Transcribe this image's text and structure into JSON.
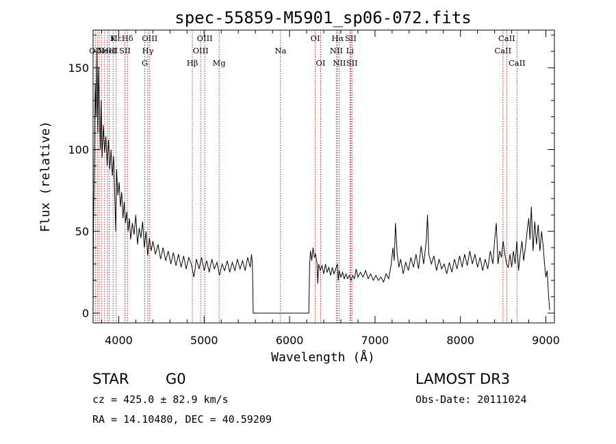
{
  "chart_data": {
    "type": "line",
    "title": "spec-55859-M5901_sp06-072.fits",
    "xlabel": "Wavelength (Å)",
    "ylabel": "Flux (relative)",
    "xlim": [
      3700,
      9100
    ],
    "ylim": [
      -6,
      173
    ],
    "x_ticks": [
      4000,
      5000,
      6000,
      7000,
      8000,
      9000
    ],
    "x_tick_labels": [
      "4000",
      "5000",
      "6000",
      "7000",
      "8000",
      "9000"
    ],
    "y_ticks": [
      0,
      50,
      100,
      150
    ],
    "y_tick_labels": [
      "0",
      "50",
      "100",
      "150"
    ],
    "series": [
      {
        "name": "flux",
        "color": "#000000",
        "points": [
          [
            3700,
            0
          ],
          [
            3705,
            55
          ],
          [
            3715,
            90
          ],
          [
            3725,
            140
          ],
          [
            3735,
            120
          ],
          [
            3745,
            160
          ],
          [
            3755,
            110
          ],
          [
            3765,
            150
          ],
          [
            3775,
            125
          ],
          [
            3785,
            100
          ],
          [
            3795,
            130
          ],
          [
            3805,
            95
          ],
          [
            3820,
            115
          ],
          [
            3835,
            98
          ],
          [
            3850,
            108
          ],
          [
            3865,
            90
          ],
          [
            3880,
            106
          ],
          [
            3895,
            88
          ],
          [
            3910,
            100
          ],
          [
            3925,
            84
          ],
          [
            3940,
            96
          ],
          [
            3955,
            70
          ],
          [
            3965,
            50
          ],
          [
            3975,
            88
          ],
          [
            3990,
            72
          ],
          [
            4005,
            80
          ],
          [
            4020,
            65
          ],
          [
            4035,
            74
          ],
          [
            4050,
            58
          ],
          [
            4065,
            68
          ],
          [
            4080,
            55
          ],
          [
            4095,
            62
          ],
          [
            4110,
            50
          ],
          [
            4125,
            58
          ],
          [
            4140,
            45
          ],
          [
            4160,
            55
          ],
          [
            4180,
            48
          ],
          [
            4200,
            60
          ],
          [
            4220,
            42
          ],
          [
            4240,
            52
          ],
          [
            4260,
            46
          ],
          [
            4280,
            56
          ],
          [
            4300,
            40
          ],
          [
            4320,
            50
          ],
          [
            4340,
            35
          ],
          [
            4360,
            46
          ],
          [
            4380,
            38
          ],
          [
            4400,
            44
          ],
          [
            4430,
            36
          ],
          [
            4460,
            42
          ],
          [
            4490,
            33
          ],
          [
            4520,
            40
          ],
          [
            4550,
            32
          ],
          [
            4580,
            38
          ],
          [
            4610,
            30
          ],
          [
            4640,
            37
          ],
          [
            4670,
            29
          ],
          [
            4700,
            36
          ],
          [
            4730,
            28
          ],
          [
            4760,
            35
          ],
          [
            4790,
            27
          ],
          [
            4820,
            34
          ],
          [
            4850,
            30
          ],
          [
            4880,
            22
          ],
          [
            4910,
            33
          ],
          [
            4940,
            27
          ],
          [
            4970,
            34
          ],
          [
            5000,
            26
          ],
          [
            5030,
            32
          ],
          [
            5060,
            25
          ],
          [
            5090,
            33
          ],
          [
            5120,
            27
          ],
          [
            5150,
            31
          ],
          [
            5180,
            23
          ],
          [
            5210,
            30
          ],
          [
            5240,
            26
          ],
          [
            5270,
            32
          ],
          [
            5300,
            25
          ],
          [
            5330,
            31
          ],
          [
            5360,
            26
          ],
          [
            5390,
            33
          ],
          [
            5420,
            27
          ],
          [
            5450,
            32
          ],
          [
            5480,
            26
          ],
          [
            5510,
            34
          ],
          [
            5540,
            28
          ],
          [
            5555,
            36
          ],
          [
            5565,
            30
          ],
          [
            5575,
            0
          ],
          [
            5700,
            0
          ],
          [
            5900,
            0
          ],
          [
            6100,
            0
          ],
          [
            6225,
            0
          ],
          [
            6235,
            30
          ],
          [
            6245,
            38
          ],
          [
            6260,
            32
          ],
          [
            6275,
            40
          ],
          [
            6290,
            34
          ],
          [
            6305,
            36
          ],
          [
            6320,
            31
          ],
          [
            6330,
            18
          ],
          [
            6340,
            30
          ],
          [
            6360,
            26
          ],
          [
            6380,
            29
          ],
          [
            6400,
            24
          ],
          [
            6420,
            30
          ],
          [
            6440,
            25
          ],
          [
            6460,
            28
          ],
          [
            6480,
            23
          ],
          [
            6500,
            28
          ],
          [
            6520,
            24
          ],
          [
            6540,
            27
          ],
          [
            6560,
            30
          ],
          [
            6570,
            20
          ],
          [
            6580,
            26
          ],
          [
            6600,
            22
          ],
          [
            6620,
            25
          ],
          [
            6640,
            21
          ],
          [
            6660,
            24
          ],
          [
            6680,
            21
          ],
          [
            6700,
            23
          ],
          [
            6720,
            20
          ],
          [
            6740,
            23
          ],
          [
            6760,
            21
          ],
          [
            6780,
            27
          ],
          [
            6800,
            22
          ],
          [
            6830,
            25
          ],
          [
            6860,
            22
          ],
          [
            6890,
            26
          ],
          [
            6920,
            21
          ],
          [
            6950,
            24
          ],
          [
            6980,
            20
          ],
          [
            7010,
            23
          ],
          [
            7040,
            20
          ],
          [
            7070,
            22
          ],
          [
            7100,
            19
          ],
          [
            7130,
            24
          ],
          [
            7160,
            21
          ],
          [
            7190,
            30
          ],
          [
            7210,
            40
          ],
          [
            7225,
            32
          ],
          [
            7240,
            55
          ],
          [
            7260,
            36
          ],
          [
            7280,
            28
          ],
          [
            7300,
            33
          ],
          [
            7330,
            24
          ],
          [
            7360,
            31
          ],
          [
            7390,
            26
          ],
          [
            7420,
            34
          ],
          [
            7450,
            28
          ],
          [
            7480,
            36
          ],
          [
            7510,
            27
          ],
          [
            7540,
            41
          ],
          [
            7570,
            30
          ],
          [
            7600,
            44
          ],
          [
            7615,
            60
          ],
          [
            7630,
            36
          ],
          [
            7660,
            30
          ],
          [
            7690,
            35
          ],
          [
            7720,
            26
          ],
          [
            7750,
            33
          ],
          [
            7780,
            27
          ],
          [
            7810,
            30
          ],
          [
            7840,
            24
          ],
          [
            7870,
            31
          ],
          [
            7900,
            25
          ],
          [
            7930,
            33
          ],
          [
            7960,
            27
          ],
          [
            7990,
            35
          ],
          [
            8020,
            28
          ],
          [
            8050,
            36
          ],
          [
            8080,
            29
          ],
          [
            8110,
            38
          ],
          [
            8140,
            30
          ],
          [
            8170,
            36
          ],
          [
            8200,
            28
          ],
          [
            8230,
            34
          ],
          [
            8260,
            26
          ],
          [
            8290,
            33
          ],
          [
            8320,
            27
          ],
          [
            8350,
            38
          ],
          [
            8380,
            30
          ],
          [
            8400,
            44
          ],
          [
            8420,
            55
          ],
          [
            8440,
            30
          ],
          [
            8460,
            38
          ],
          [
            8480,
            34
          ],
          [
            8500,
            44
          ],
          [
            8520,
            36
          ],
          [
            8540,
            30
          ],
          [
            8560,
            28
          ],
          [
            8580,
            36
          ],
          [
            8600,
            28
          ],
          [
            8620,
            38
          ],
          [
            8640,
            30
          ],
          [
            8660,
            44
          ],
          [
            8680,
            26
          ],
          [
            8700,
            36
          ],
          [
            8720,
            44
          ],
          [
            8740,
            32
          ],
          [
            8760,
            40
          ],
          [
            8780,
            50
          ],
          [
            8800,
            58
          ],
          [
            8815,
            45
          ],
          [
            8830,
            65
          ],
          [
            8850,
            38
          ],
          [
            8870,
            56
          ],
          [
            8890,
            42
          ],
          [
            8910,
            54
          ],
          [
            8930,
            38
          ],
          [
            8950,
            50
          ],
          [
            8970,
            40
          ],
          [
            8985,
            30
          ],
          [
            9000,
            22
          ],
          [
            9015,
            26
          ],
          [
            9030,
            12
          ],
          [
            9045,
            2
          ]
        ]
      }
    ],
    "reference_lines": [
      {
        "wavelength": 3727,
        "label": "OII",
        "row": 2
      },
      {
        "wavelength": 3750,
        "label": "",
        "row": 0
      },
      {
        "wavelength": 3771,
        "label": "",
        "row": 0
      },
      {
        "wavelength": 3798,
        "label": "",
        "row": 0
      },
      {
        "wavelength": 3835,
        "label": "",
        "row": 0
      },
      {
        "wavelength": 3869,
        "label": "NeIII",
        "row": 2
      },
      {
        "wavelength": 3889,
        "label": "HeI",
        "row": 2
      },
      {
        "wavelength": 3934,
        "label": "K",
        "row": 1
      },
      {
        "wavelength": 3970,
        "label": "Hε",
        "row": 1
      },
      {
        "wavelength": 4072,
        "label": "SII",
        "row": 2
      },
      {
        "wavelength": 4102,
        "label": "Hδ",
        "row": 1
      },
      {
        "wavelength": 4305,
        "label": "G",
        "row": 3
      },
      {
        "wavelength": 4341,
        "label": "Hγ",
        "row": 2
      },
      {
        "wavelength": 4363,
        "label": "OIII",
        "row": 1
      },
      {
        "wavelength": 4862,
        "label": "Hβ",
        "row": 3
      },
      {
        "wavelength": 4959,
        "label": "OIII",
        "row": 2
      },
      {
        "wavelength": 5007,
        "label": "OIII",
        "row": 1
      },
      {
        "wavelength": 5175,
        "label": "Mg",
        "row": 3
      },
      {
        "wavelength": 5894,
        "label": "Na",
        "row": 2
      },
      {
        "wavelength": 6300,
        "label": "OI",
        "row": 1
      },
      {
        "wavelength": 6364,
        "label": "OI",
        "row": 3
      },
      {
        "wavelength": 6548,
        "label": "NII",
        "row": 2
      },
      {
        "wavelength": 6563,
        "label": "Hα",
        "row": 1
      },
      {
        "wavelength": 6583,
        "label": "NII",
        "row": 3
      },
      {
        "wavelength": 6707,
        "label": "Li",
        "row": 2
      },
      {
        "wavelength": 6716,
        "label": "SII",
        "row": 1
      },
      {
        "wavelength": 6730,
        "label": "SII",
        "row": 3
      },
      {
        "wavelength": 8498,
        "label": "CaII",
        "row": 2
      },
      {
        "wavelength": 8542,
        "label": "CaII",
        "row": 1
      },
      {
        "wavelength": 8662,
        "label": "CaII",
        "row": 3
      }
    ]
  },
  "info": {
    "object_class": "STAR",
    "subclass": "G0",
    "survey": "LAMOST DR3",
    "redshift": "cz = 425.0 ± 82.9 km/s",
    "obs_date": "Obs-Date: 20111024",
    "coords": "RA =  14.10480, DEC =  40.59209"
  }
}
